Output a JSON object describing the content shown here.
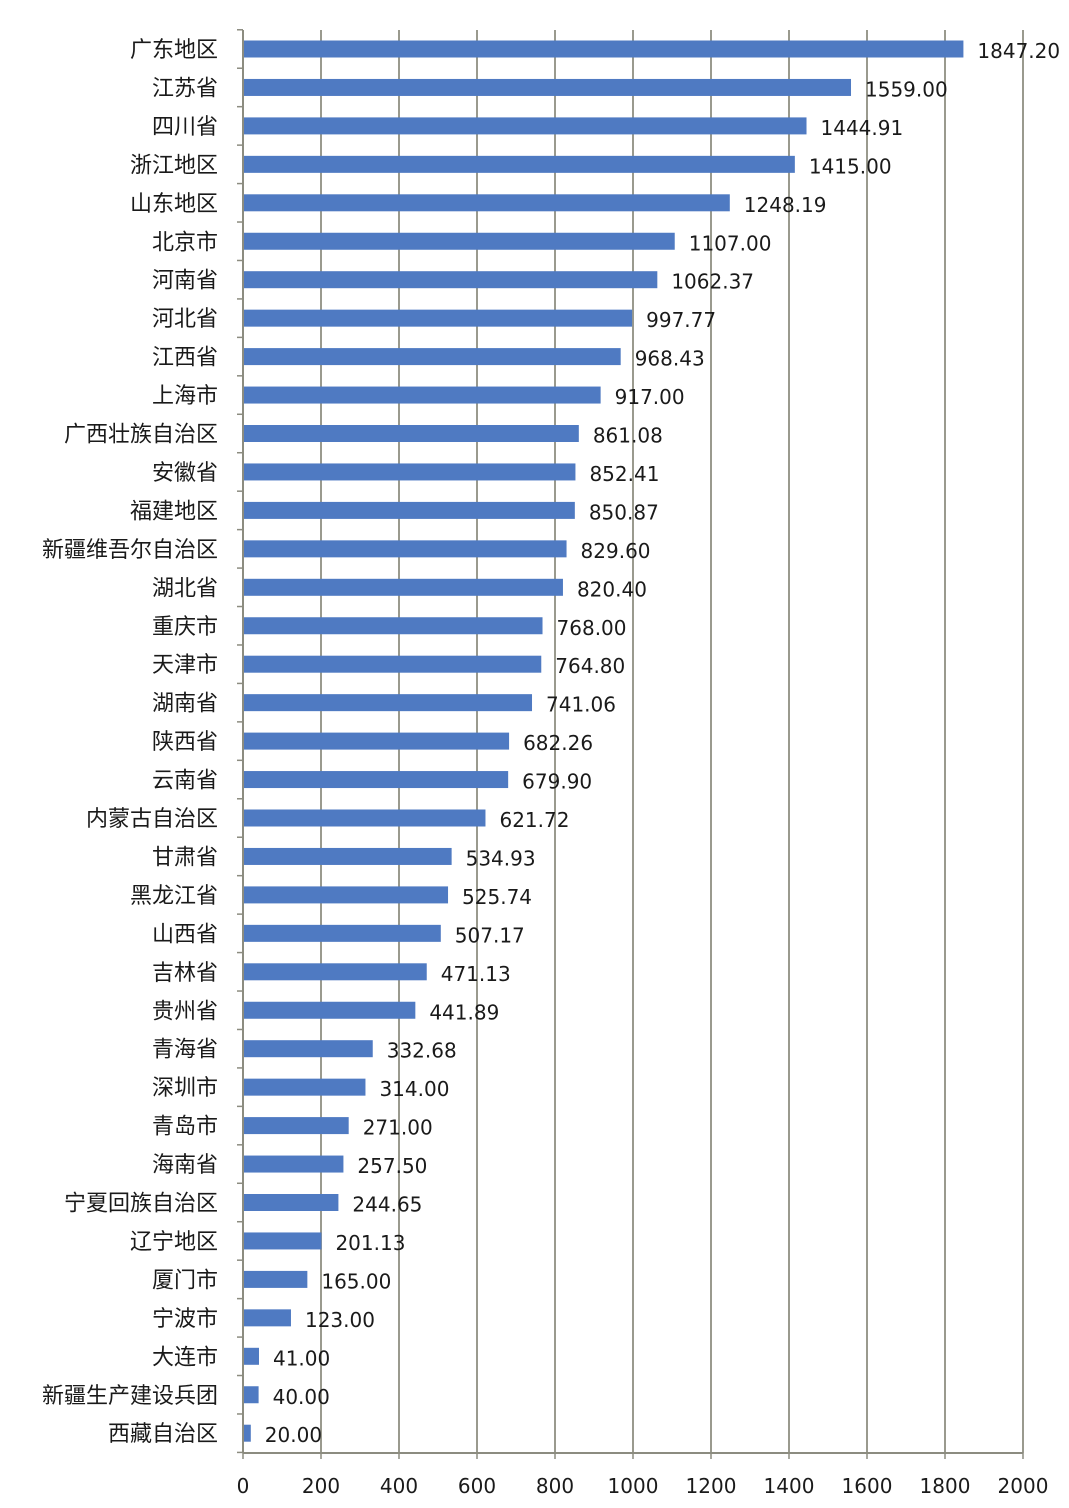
{
  "chart_data": {
    "type": "bar",
    "orientation": "horizontal",
    "categories": [
      "广东地区",
      "江苏省",
      "四川省",
      "浙江地区",
      "山东地区",
      "北京市",
      "河南省",
      "河北省",
      "江西省",
      "上海市",
      "广西壮族自治区",
      "安徽省",
      "福建地区",
      "新疆维吾尔自治区",
      "湖北省",
      "重庆市",
      "天津市",
      "湖南省",
      "陕西省",
      "云南省",
      "内蒙古自治区",
      "甘肃省",
      "黑龙江省",
      "山西省",
      "吉林省",
      "贵州省",
      "青海省",
      "深圳市",
      "青岛市",
      "海南省",
      "宁夏回族自治区",
      "辽宁地区",
      "厦门市",
      "宁波市",
      "大连市",
      "新疆生产建设兵团",
      "西藏自治区"
    ],
    "values": [
      1847.2,
      1559.0,
      1444.91,
      1415.0,
      1248.19,
      1107.0,
      1062.37,
      997.77,
      968.43,
      917.0,
      861.08,
      852.41,
      850.87,
      829.6,
      820.4,
      768.0,
      764.8,
      741.06,
      682.26,
      679.9,
      621.72,
      534.93,
      525.74,
      507.17,
      471.13,
      441.89,
      332.68,
      314.0,
      271.0,
      257.5,
      244.65,
      201.13,
      165.0,
      123.0,
      41.0,
      40.0,
      20.0
    ],
    "value_labels": [
      "1847.20",
      "1559.00",
      "1444.91",
      "1415.00",
      "1248.19",
      "1107.00",
      "1062.37",
      "997.77",
      "968.43",
      "917.00",
      "861.08",
      "852.41",
      "850.87",
      "829.60",
      "820.40",
      "768.00",
      "764.80",
      "741.06",
      "682.26",
      "679.90",
      "621.72",
      "534.93",
      "525.74",
      "507.17",
      "471.13",
      "441.89",
      "332.68",
      "314.00",
      "271.00",
      "257.50",
      "244.65",
      "201.13",
      "165.00",
      "123.00",
      "41.00",
      "40.00",
      "20.00"
    ],
    "x_ticks": [
      "0",
      "200",
      "400",
      "600",
      "800",
      "1000",
      "1200",
      "1400",
      "1600",
      "1800",
      "2000"
    ],
    "xlim": [
      0,
      2000
    ],
    "title": "",
    "xlabel": "",
    "ylabel": "",
    "grid": "vertical",
    "legend": "none",
    "colors": {
      "bar": "#4f7ac2",
      "grid": "#9a9a8e",
      "axis": "#8c8c80"
    }
  }
}
